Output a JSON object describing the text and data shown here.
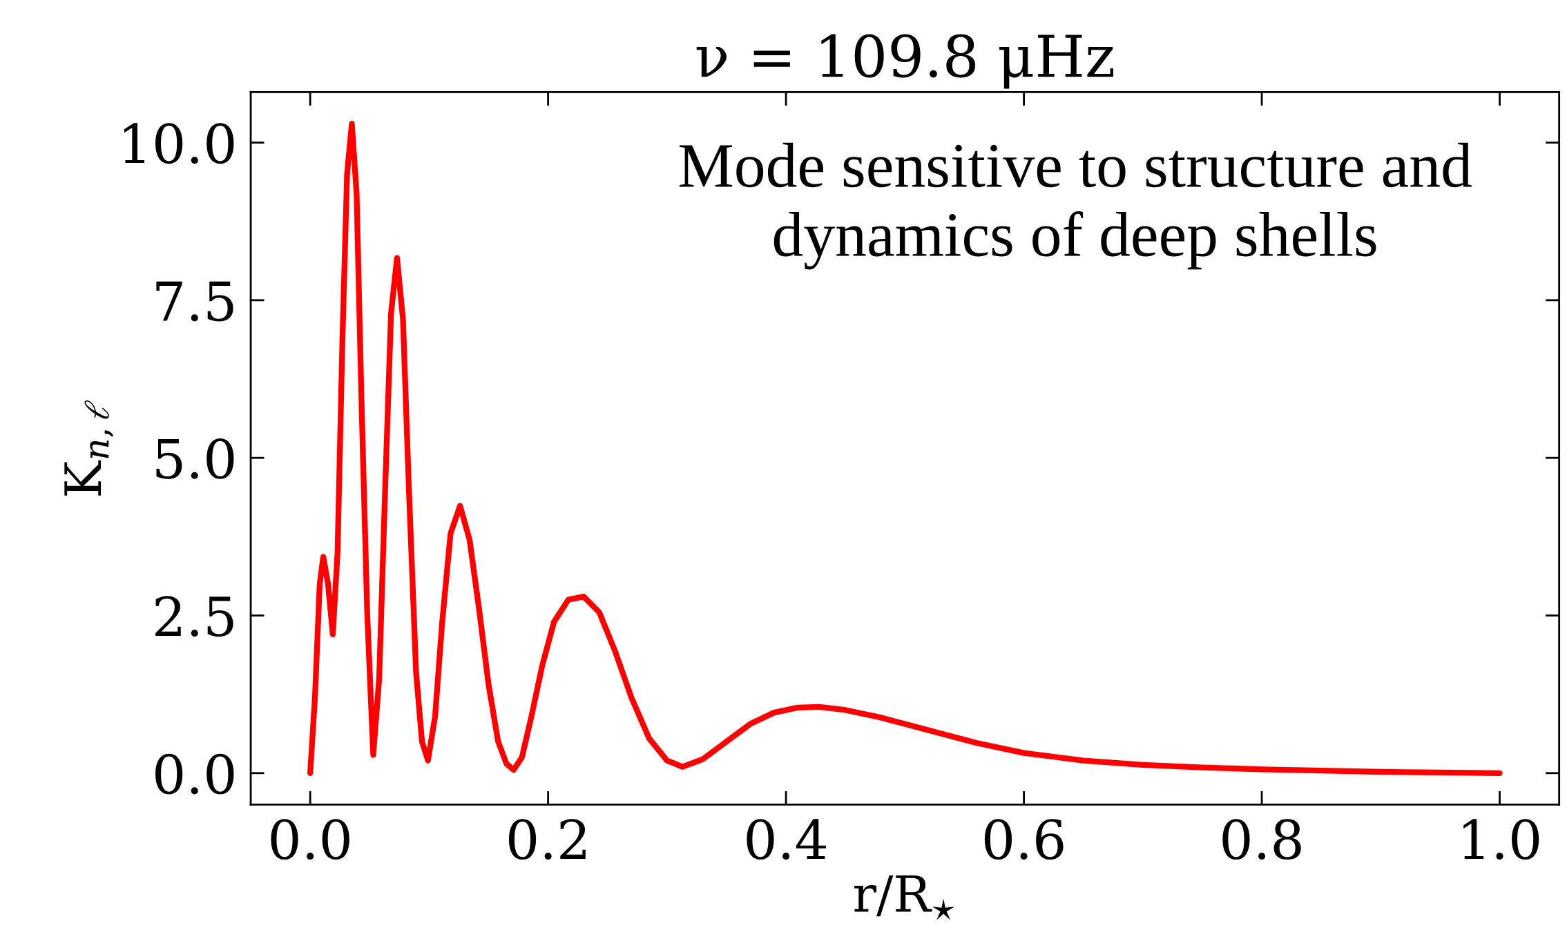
{
  "chart_data": {
    "type": "line",
    "title": "ν = 109.8 μHz",
    "xlabel": "r/R$_{⋆}$",
    "ylabel": "K$_{n,ℓ}$",
    "annotations": [
      "Mode sensitive to structure and\ndynamics of deep shells"
    ],
    "x": [
      0.0,
      0.004,
      0.008,
      0.011,
      0.015,
      0.019,
      0.023,
      0.027,
      0.031,
      0.035,
      0.039,
      0.043,
      0.048,
      0.053,
      0.058,
      0.063,
      0.068,
      0.073,
      0.078,
      0.083,
      0.089,
      0.094,
      0.099,
      0.105,
      0.111,
      0.118,
      0.126,
      0.134,
      0.142,
      0.15,
      0.158,
      0.165,
      0.171,
      0.178,
      0.186,
      0.195,
      0.205,
      0.217,
      0.23,
      0.243,
      0.256,
      0.27,
      0.285,
      0.3,
      0.313,
      0.33,
      0.35,
      0.37,
      0.39,
      0.41,
      0.428,
      0.45,
      0.48,
      0.52,
      0.56,
      0.6,
      0.65,
      0.7,
      0.75,
      0.8,
      0.85,
      0.9,
      0.95,
      1.0
    ],
    "series": [
      {
        "color": "#ff0000",
        "values": [
          0.0,
          1.2,
          3.0,
          3.43,
          3.0,
          2.2,
          3.5,
          6.8,
          9.5,
          10.3,
          9.2,
          6.0,
          2.5,
          0.29,
          1.5,
          4.5,
          7.3,
          8.17,
          7.2,
          4.5,
          1.6,
          0.5,
          0.2,
          0.9,
          2.4,
          3.8,
          4.24,
          3.7,
          2.6,
          1.4,
          0.5,
          0.15,
          0.05,
          0.25,
          0.9,
          1.7,
          2.4,
          2.75,
          2.8,
          2.55,
          1.95,
          1.2,
          0.55,
          0.2,
          0.1,
          0.22,
          0.5,
          0.78,
          0.96,
          1.04,
          1.05,
          1.0,
          0.88,
          0.68,
          0.48,
          0.32,
          0.2,
          0.13,
          0.09,
          0.06,
          0.04,
          0.02,
          0.01,
          0.0
        ]
      }
    ],
    "xlim": [
      -0.05,
      1.05
    ],
    "ylim": [
      -0.5,
      10.8
    ],
    "xticks": [
      {
        "value": 0.0,
        "label": "0.0"
      },
      0.2,
      0.4,
      0.6,
      0.8,
      {
        "value": 1.0,
        "label": "1.0"
      }
    ],
    "yticks": [
      {
        "value": 0.0,
        "label": "0.0"
      },
      2.5,
      {
        "value": 5.0,
        "label": "5.0"
      },
      7.5,
      {
        "value": 10.0,
        "label": "10.0"
      }
    ],
    "grid": false,
    "legend": false,
    "marker": "none",
    "line_style": "solid"
  }
}
